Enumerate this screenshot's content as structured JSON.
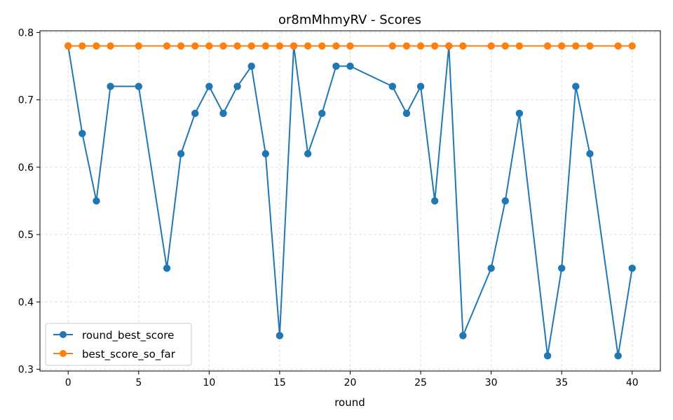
{
  "chart_data": {
    "type": "line",
    "title": "or8mMhmyRV - Scores",
    "xlabel": "round",
    "ylabel": "",
    "xlim": [
      -2,
      42
    ],
    "ylim": [
      0.2975,
      0.8025
    ],
    "xticks": [
      0,
      5,
      10,
      15,
      20,
      25,
      30,
      35,
      40
    ],
    "yticks": [
      0.3,
      0.4,
      0.5,
      0.6,
      0.7,
      0.8
    ],
    "grid": true,
    "legend_position": "lower-left",
    "series": [
      {
        "name": "round_best_score",
        "color": "#1f77b4",
        "marker": "circle",
        "x": [
          0,
          1,
          2,
          3,
          5,
          7,
          8,
          9,
          10,
          11,
          12,
          13,
          14,
          15,
          16,
          17,
          18,
          19,
          20,
          23,
          24,
          25,
          26,
          27,
          28,
          30,
          31,
          32,
          34,
          35,
          36,
          37,
          39,
          40
        ],
        "y": [
          0.78,
          0.65,
          0.55,
          0.72,
          0.72,
          0.45,
          0.62,
          0.68,
          0.72,
          0.68,
          0.72,
          0.75,
          0.62,
          0.35,
          0.78,
          0.62,
          0.68,
          0.75,
          0.75,
          0.72,
          0.68,
          0.72,
          0.55,
          0.78,
          0.35,
          0.45,
          0.55,
          0.68,
          0.32,
          0.45,
          0.72,
          0.62,
          0.32,
          0.45
        ]
      },
      {
        "name": "best_score_so_far",
        "color": "#ff7f0e",
        "marker": "circle",
        "x": [
          0,
          1,
          2,
          3,
          5,
          7,
          8,
          9,
          10,
          11,
          12,
          13,
          14,
          15,
          16,
          17,
          18,
          19,
          20,
          23,
          24,
          25,
          26,
          27,
          28,
          30,
          31,
          32,
          34,
          35,
          36,
          37,
          39,
          40
        ],
        "y": [
          0.78,
          0.78,
          0.78,
          0.78,
          0.78,
          0.78,
          0.78,
          0.78,
          0.78,
          0.78,
          0.78,
          0.78,
          0.78,
          0.78,
          0.78,
          0.78,
          0.78,
          0.78,
          0.78,
          0.78,
          0.78,
          0.78,
          0.78,
          0.78,
          0.78,
          0.78,
          0.78,
          0.78,
          0.78,
          0.78,
          0.78,
          0.78,
          0.78,
          0.78
        ]
      }
    ]
  }
}
